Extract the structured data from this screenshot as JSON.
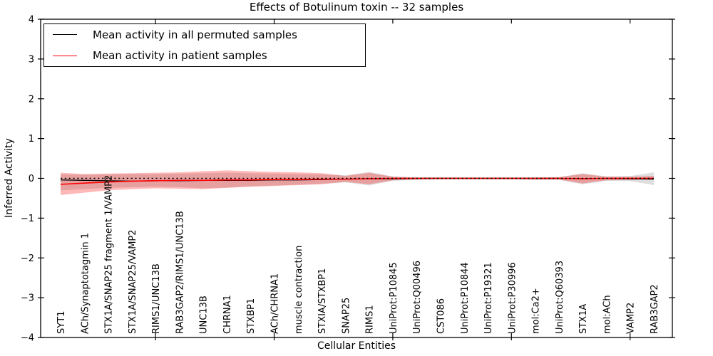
{
  "figure": {
    "title": "Effects of Botulinum toxin -- 32 samples",
    "xlabel": "Cellular Entities",
    "ylabel": "Inferred Activity"
  },
  "legend": {
    "items": [
      {
        "label": "Mean activity in all permuted samples",
        "color": "#000000"
      },
      {
        "label": "Mean activity in patient samples",
        "color": "#ff0000"
      }
    ]
  },
  "colors": {
    "permuted_line": "#000000",
    "patient_line": "#ff0000",
    "permuted_band": "rgba(0,0,0,0.13)",
    "patient_band": "rgba(255,0,0,0.28)",
    "zero_line": "#000000",
    "axis": "#000000"
  },
  "chart_data": {
    "type": "line",
    "title": "Effects of Botulinum toxin -- 32 samples",
    "xlabel": "Cellular Entities",
    "ylabel": "Inferred Activity",
    "ylim": [
      -4,
      4
    ],
    "yticks": [
      -4,
      -3,
      -2,
      -1,
      0,
      1,
      2,
      3,
      4
    ],
    "ytick_labels": [
      "−4",
      "−3",
      "−2",
      "−1",
      "0",
      "1",
      "2",
      "3",
      "4"
    ],
    "grid": false,
    "legend_position": "upper left",
    "xticks_major_at": [
      4,
      9,
      14,
      19,
      24
    ],
    "zero_line": {
      "y": 0,
      "style": "dotted",
      "color": "#000000"
    },
    "categories": [
      "SYT1",
      "ACh/Synaptotagmin 1",
      "STX1A/SNAP25 fragment 1/VAMP2",
      "STX1A/SNAP25/VAMP2",
      "RIMS1/UNC13B",
      "RAB3GAP2/RIMS1/UNC13B",
      "UNC13B",
      "CHRNA1",
      "STXBP1",
      "ACh/CHRNA1",
      "muscle contraction",
      "STXIA/STXBP1",
      "SNAP25",
      "RIMS1",
      "UniProt:P10845",
      "UniProt:Q00496",
      "CST086",
      "UniProt:P10844",
      "UniProt:P19321",
      "UniProt:P30996",
      "mol:Ca2+",
      "UniProt:Q60393",
      "STX1A",
      "mol:ACh",
      "VAMP2",
      "RAB3GAP2"
    ],
    "series": [
      {
        "name": "Mean activity in all permuted samples",
        "color": "#000000",
        "style": "solid",
        "values": [
          -0.04,
          -0.05,
          -0.06,
          -0.07,
          -0.06,
          -0.06,
          -0.05,
          -0.05,
          -0.05,
          -0.04,
          -0.04,
          -0.03,
          -0.02,
          -0.01,
          -0.01,
          0,
          0,
          0,
          0,
          0,
          0,
          0,
          -0.01,
          0,
          -0.01,
          -0.02
        ]
      },
      {
        "name": "Mean activity in patient samples",
        "color": "#ff0000",
        "style": "solid",
        "values": [
          -0.15,
          -0.12,
          -0.09,
          -0.07,
          -0.06,
          -0.05,
          -0.05,
          -0.04,
          -0.04,
          -0.03,
          -0.03,
          -0.02,
          -0.02,
          -0.01,
          0,
          0,
          0,
          0,
          0,
          0,
          0,
          0,
          -0.01,
          0,
          0,
          0
        ]
      }
    ],
    "bands": [
      {
        "name": "permuted-samples-std-band",
        "color": "rgba(0,0,0,0.13)",
        "upper": [
          0.1,
          0.09,
          0.1,
          0.11,
          0.11,
          0.12,
          0.13,
          0.14,
          0.13,
          0.12,
          0.11,
          0.1,
          0.08,
          0.16,
          0.05,
          0.03,
          0.03,
          0.03,
          0.03,
          0.03,
          0.03,
          0.03,
          0.13,
          0.05,
          0.06,
          0.15
        ],
        "lower": [
          -0.3,
          -0.27,
          -0.24,
          -0.22,
          -0.21,
          -0.22,
          -0.25,
          -0.23,
          -0.2,
          -0.18,
          -0.16,
          -0.13,
          -0.1,
          -0.18,
          -0.06,
          -0.04,
          -0.03,
          -0.03,
          -0.03,
          -0.03,
          -0.04,
          -0.04,
          -0.15,
          -0.06,
          -0.07,
          -0.17
        ]
      },
      {
        "name": "patient-samples-std-band",
        "color": "rgba(255,0,0,0.28)",
        "upper": [
          0.14,
          0.11,
          0.12,
          0.13,
          0.14,
          0.15,
          0.18,
          0.2,
          0.18,
          0.16,
          0.15,
          0.13,
          0.06,
          0.14,
          0.04,
          0.02,
          0.02,
          0.02,
          0.02,
          0.02,
          0.02,
          0.03,
          0.11,
          0.04,
          0.04,
          0.06
        ],
        "lower": [
          -0.42,
          -0.36,
          -0.3,
          -0.27,
          -0.25,
          -0.26,
          -0.27,
          -0.24,
          -0.21,
          -0.19,
          -0.17,
          -0.15,
          -0.09,
          -0.15,
          -0.05,
          -0.03,
          -0.02,
          -0.02,
          -0.02,
          -0.02,
          -0.03,
          -0.03,
          -0.13,
          -0.05,
          -0.04,
          -0.03
        ]
      }
    ]
  }
}
